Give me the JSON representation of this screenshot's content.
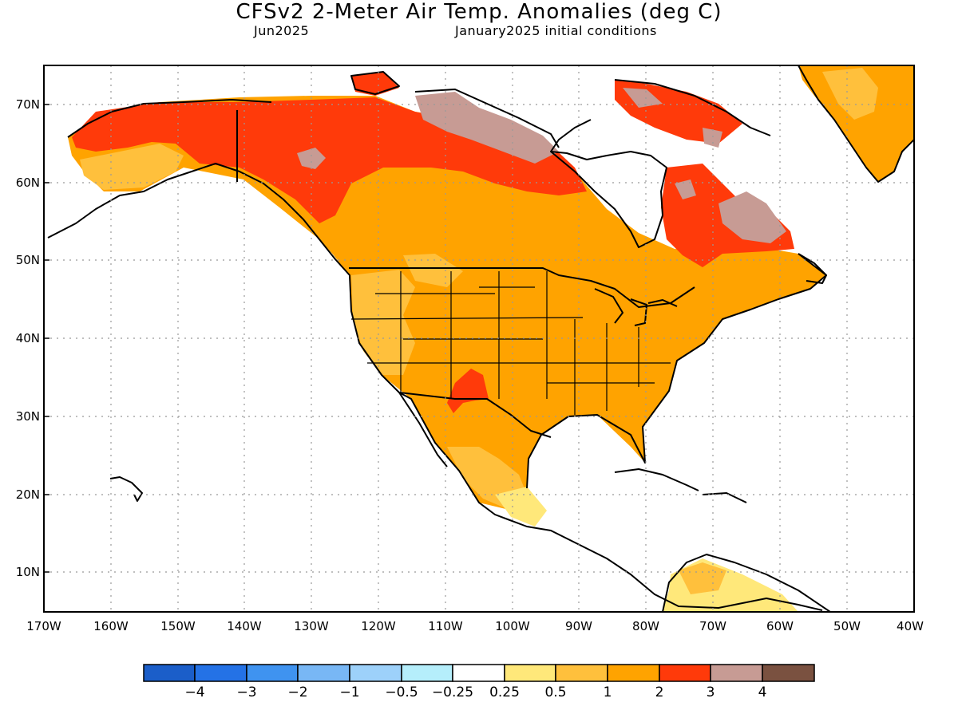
{
  "title": "CFSv2 2-Meter Air Temp. Anomalies (deg C)",
  "valid_month": "Jun2025",
  "init_label": "January2025 initial conditions",
  "map": {
    "lat_labels": [
      "70N",
      "60N",
      "50N",
      "40N",
      "30N",
      "20N",
      "10N"
    ],
    "lon_labels": [
      "170W",
      "160W",
      "150W",
      "140W",
      "130W",
      "120W",
      "110W",
      "100W",
      "90W",
      "80W",
      "70W",
      "60W",
      "50W",
      "40W"
    ],
    "lat_range": [
      5,
      75
    ],
    "lon_range": [
      -170,
      -40
    ],
    "grid_style": "dotted"
  },
  "colorbar": {
    "colors": [
      "#1b5ec9",
      "#2472e6",
      "#3f93f0",
      "#78b7f5",
      "#9dd1fa",
      "#b5eefb",
      "#ffffff",
      "#ffe87a",
      "#ffc03c",
      "#ffa300",
      "#ff3a0a",
      "#c79b94",
      "#7a5140"
    ],
    "labels": [
      "−4",
      "−3",
      "−2",
      "−1",
      "−0.5",
      "−0.25",
      "0.25",
      "0.5",
      "1",
      "2",
      "3",
      "4"
    ]
  }
}
